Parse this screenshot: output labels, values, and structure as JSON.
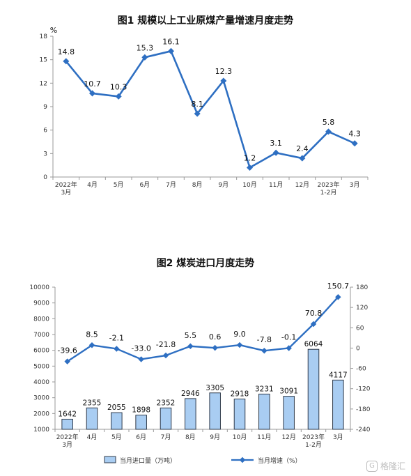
{
  "chart_data": [
    {
      "type": "line",
      "title": "图1  规模以上工业原煤产量增速月度走势",
      "ylabel": "%",
      "ylim": [
        0,
        18
      ],
      "yticks": [
        0,
        3,
        6,
        9,
        12,
        15,
        18
      ],
      "categories": [
        "2022年\n3月",
        "4月",
        "5月",
        "6月",
        "7月",
        "8月",
        "9月",
        "10月",
        "11月",
        "12月",
        "2023年\n1-2月",
        "3月"
      ],
      "values": [
        14.8,
        10.7,
        10.3,
        15.3,
        16.1,
        8.1,
        12.3,
        1.2,
        3.1,
        2.4,
        5.8,
        4.3
      ],
      "value_labels": [
        "14.8",
        "10.7",
        "10.3",
        "15.3",
        "16.1",
        "8.1",
        "12.3",
        "1.2",
        "3.1",
        "2.4",
        "5.8",
        "4.3"
      ],
      "grid": false,
      "color": "#2e6fc2"
    },
    {
      "type": "bar+line",
      "title": "图2  煤炭进口月度走势",
      "categories": [
        "2022年\n3月",
        "4月",
        "5月",
        "6月",
        "7月",
        "8月",
        "9月",
        "10月",
        "11月",
        "12月",
        "2023年\n1-2月",
        "3月"
      ],
      "y_left": {
        "ylim": [
          1000,
          10000
        ],
        "yticks": [
          1000,
          2000,
          3000,
          4000,
          5000,
          6000,
          7000,
          8000,
          9000,
          10000
        ]
      },
      "y_right": {
        "ylim": [
          -240,
          180
        ],
        "yticks": [
          -240,
          -180,
          -120,
          -60,
          0,
          60,
          120,
          180
        ]
      },
      "series": [
        {
          "name": "当月进口量（万吨）",
          "type": "bar",
          "axis": "left",
          "values": [
            1642,
            2355,
            2055,
            1898,
            2352,
            2946,
            3305,
            2918,
            3231,
            3091,
            6064,
            4117
          ],
          "value_labels": [
            "1642",
            "2355",
            "2055",
            "1898",
            "2352",
            "2946",
            "3305",
            "2918",
            "3231",
            "3091",
            "6064",
            "4117"
          ],
          "color": "#a9cdf2",
          "border_color": "#2f3a4a"
        },
        {
          "name": "当月增速（%）",
          "type": "line",
          "axis": "right",
          "values": [
            -39.6,
            8.5,
            -2.1,
            -33.0,
            -21.8,
            5.5,
            0.6,
            9.0,
            -7.8,
            -0.1,
            70.8,
            150.7
          ],
          "value_labels": [
            "-39.6",
            "8.5",
            "-2.1",
            "-33.0",
            "-21.8",
            "5.5",
            "0.6",
            "9.0",
            "-7.8",
            "-0.1",
            "70.8",
            "150.7"
          ],
          "color": "#2e6fc2"
        }
      ],
      "legend": "bottom",
      "grid": false
    }
  ],
  "watermark": {
    "icon": "G",
    "text": "格隆汇"
  }
}
